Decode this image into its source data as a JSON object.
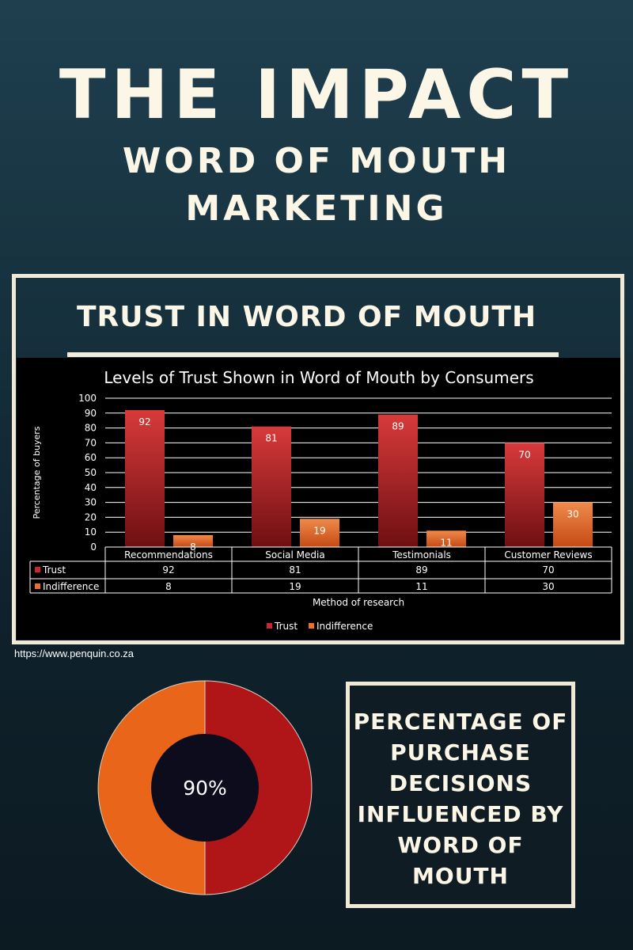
{
  "header": {
    "title": "THE IMPACT",
    "subtitle_line1": "WORD OF MOUTH",
    "subtitle_line2": "MARKETING"
  },
  "panel": {
    "title": "TRUST IN WORD OF MOUTH"
  },
  "chart_data": {
    "type": "bar",
    "title": "Levels of Trust Shown in Word of Mouth by Consumers",
    "xlabel": "Method of research",
    "ylabel": "Percentage of buyers",
    "ylim": [
      0,
      100
    ],
    "yticks": [
      0,
      10,
      20,
      30,
      40,
      50,
      60,
      70,
      80,
      90,
      100
    ],
    "categories": [
      "Recommendations",
      "Social Media",
      "Testimonials",
      "Customer Reviews"
    ],
    "series": [
      {
        "name": "Trust",
        "values": [
          92,
          81,
          89,
          70
        ],
        "color": "#c9282d"
      },
      {
        "name": "Indifference",
        "values": [
          8,
          19,
          11,
          30
        ],
        "color": "#ec6e2f"
      }
    ],
    "grid": true,
    "legend_position": "bottom",
    "data_table": true
  },
  "source": "https://www.penquin.co.za",
  "donut": {
    "label": "90%",
    "value": 90,
    "colors": {
      "left": "#e8651a",
      "right": "#b01518",
      "center": "#0c0c1c"
    }
  },
  "influence_box": {
    "text": "PERCENTAGE OF\nPURCHASE\nDECISIONS\nINFLUENCED BY\nWORD OF\nMOUTH"
  }
}
